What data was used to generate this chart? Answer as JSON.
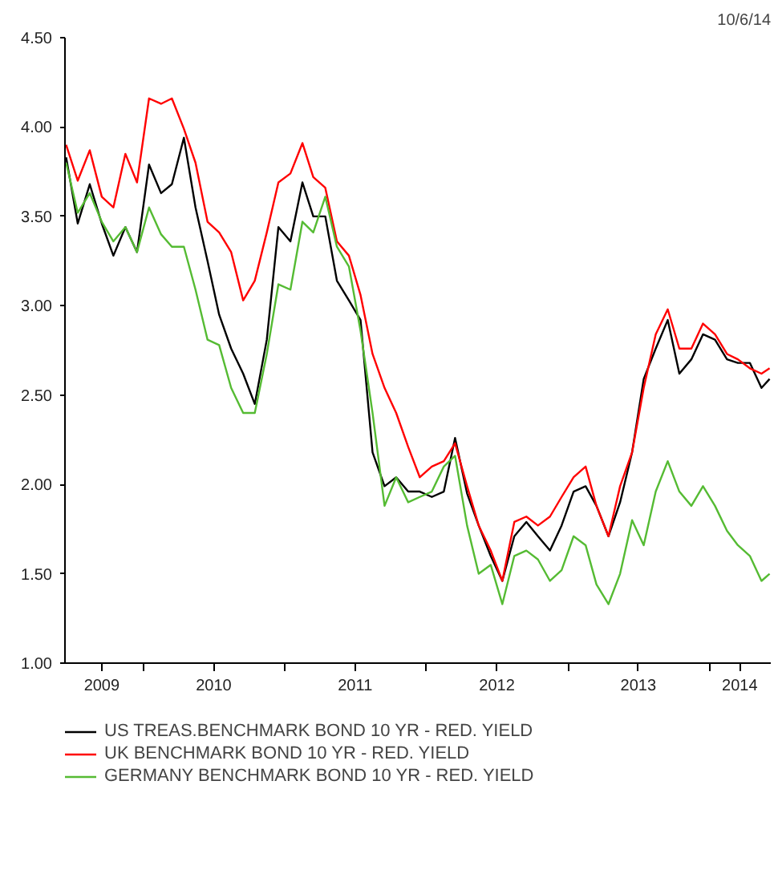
{
  "chart_data": {
    "type": "line",
    "annotations": [
      "10/6/14"
    ],
    "x": [
      "2009-06-15",
      "2009-07-15",
      "2009-08-15",
      "2009-09-15",
      "2009-10-15",
      "2009-11-15",
      "2009-12-15",
      "2010-01-15",
      "2010-02-15",
      "2010-03-15",
      "2010-04-15",
      "2010-05-15",
      "2010-06-15",
      "2010-07-15",
      "2010-08-15",
      "2010-09-15",
      "2010-10-15",
      "2010-11-15",
      "2010-12-15",
      "2011-01-15",
      "2011-02-15",
      "2011-03-15",
      "2011-04-15",
      "2011-05-15",
      "2011-06-15",
      "2011-07-15",
      "2011-08-15",
      "2011-09-15",
      "2011-10-15",
      "2011-11-15",
      "2011-12-15",
      "2012-01-15",
      "2012-02-15",
      "2012-03-15",
      "2012-04-15",
      "2012-05-15",
      "2012-06-15",
      "2012-07-15",
      "2012-08-15",
      "2012-09-15",
      "2012-10-15",
      "2012-11-15",
      "2012-12-15",
      "2013-01-15",
      "2013-02-15",
      "2013-03-15",
      "2013-04-15",
      "2013-05-15",
      "2013-06-15",
      "2013-07-15",
      "2013-08-15",
      "2013-09-15",
      "2013-10-15",
      "2013-11-15",
      "2013-12-15",
      "2014-01-15",
      "2014-02-15",
      "2014-03-15",
      "2014-04-15",
      "2014-05-15",
      "2014-06-05"
    ],
    "series": [
      {
        "name": "US TREAS.BENCHMARK BOND 10 YR - RED. YIELD",
        "color": "#000000",
        "values": [
          3.83,
          3.46,
          3.68,
          3.46,
          3.28,
          3.44,
          3.3,
          3.79,
          3.63,
          3.68,
          3.94,
          3.55,
          3.25,
          2.95,
          2.76,
          2.62,
          2.45,
          2.81,
          3.44,
          3.36,
          3.69,
          3.5,
          3.5,
          3.14,
          3.03,
          2.92,
          2.18,
          1.99,
          2.04,
          1.96,
          1.96,
          1.93,
          1.96,
          2.26,
          1.95,
          1.77,
          1.6,
          1.46,
          1.71,
          1.79,
          1.71,
          1.63,
          1.77,
          1.96,
          1.99,
          1.88,
          1.71,
          1.9,
          2.18,
          2.59,
          2.76,
          2.92,
          2.62,
          2.7,
          2.84,
          2.81,
          2.7,
          2.68,
          2.68,
          2.54,
          2.59
        ]
      },
      {
        "name": "UK BENCHMARK BOND 10 YR - RED. YIELD",
        "color": "#ff0000",
        "values": [
          3.9,
          3.7,
          3.87,
          3.61,
          3.55,
          3.85,
          3.69,
          4.16,
          4.13,
          4.16,
          3.99,
          3.8,
          3.47,
          3.41,
          3.3,
          3.03,
          3.14,
          3.41,
          3.69,
          3.74,
          3.91,
          3.72,
          3.66,
          3.36,
          3.28,
          3.06,
          2.73,
          2.54,
          2.4,
          2.21,
          2.04,
          2.1,
          2.13,
          2.23,
          1.99,
          1.77,
          1.63,
          1.46,
          1.79,
          1.82,
          1.77,
          1.82,
          1.93,
          2.04,
          2.1,
          1.88,
          1.71,
          1.99,
          2.18,
          2.54,
          2.84,
          2.98,
          2.76,
          2.76,
          2.9,
          2.84,
          2.73,
          2.7,
          2.65,
          2.62,
          2.65
        ]
      },
      {
        "name": "GERMANY BENCHMARK BOND 10 YR - RED. YIELD",
        "color": "#55bb33",
        "values": [
          3.8,
          3.52,
          3.63,
          3.47,
          3.36,
          3.44,
          3.3,
          3.55,
          3.4,
          3.33,
          3.33,
          3.09,
          2.81,
          2.78,
          2.54,
          2.4,
          2.4,
          2.73,
          3.12,
          3.09,
          3.47,
          3.41,
          3.61,
          3.33,
          3.22,
          2.86,
          2.4,
          1.88,
          2.04,
          1.9,
          1.93,
          1.96,
          2.1,
          2.16,
          1.77,
          1.5,
          1.55,
          1.33,
          1.6,
          1.63,
          1.58,
          1.46,
          1.52,
          1.71,
          1.66,
          1.44,
          1.33,
          1.5,
          1.8,
          1.66,
          1.96,
          2.13,
          1.96,
          1.88,
          1.99,
          1.88,
          1.74,
          1.66,
          1.6,
          1.46,
          1.5
        ]
      }
    ],
    "xlim": [
      "2009-06-12",
      "2014-06-08"
    ],
    "xticks": [
      {
        "value": "2010-01-01",
        "label": null
      },
      {
        "value": "2011-01-01",
        "label": null
      },
      {
        "value": "2012-01-01",
        "label": null
      },
      {
        "value": "2013-01-01",
        "label": null
      },
      {
        "value": "2014-01-01",
        "label": null
      },
      {
        "value": "2009-09-15",
        "label": "2009"
      },
      {
        "value": "2010-07-01",
        "label": "2010"
      },
      {
        "value": "2011-07-01",
        "label": "2011"
      },
      {
        "value": "2012-07-01",
        "label": "2012"
      },
      {
        "value": "2013-07-01",
        "label": "2013"
      },
      {
        "value": "2014-03-20",
        "label": "2014"
      }
    ],
    "ylim": [
      1,
      4.5
    ],
    "yticks": [
      {
        "value": 1,
        "label": "1.00"
      },
      {
        "value": 1.5,
        "label": "1.50"
      },
      {
        "value": 2,
        "label": "2.00"
      },
      {
        "value": 2.5,
        "label": "2.50"
      },
      {
        "value": 3,
        "label": "3.00"
      },
      {
        "value": 3.5,
        "label": "3.50"
      },
      {
        "value": 4,
        "label": "4.00"
      },
      {
        "value": 4.5,
        "label": "4.50"
      }
    ],
    "grid": false,
    "legend": "bottom",
    "line_style": "solid"
  }
}
